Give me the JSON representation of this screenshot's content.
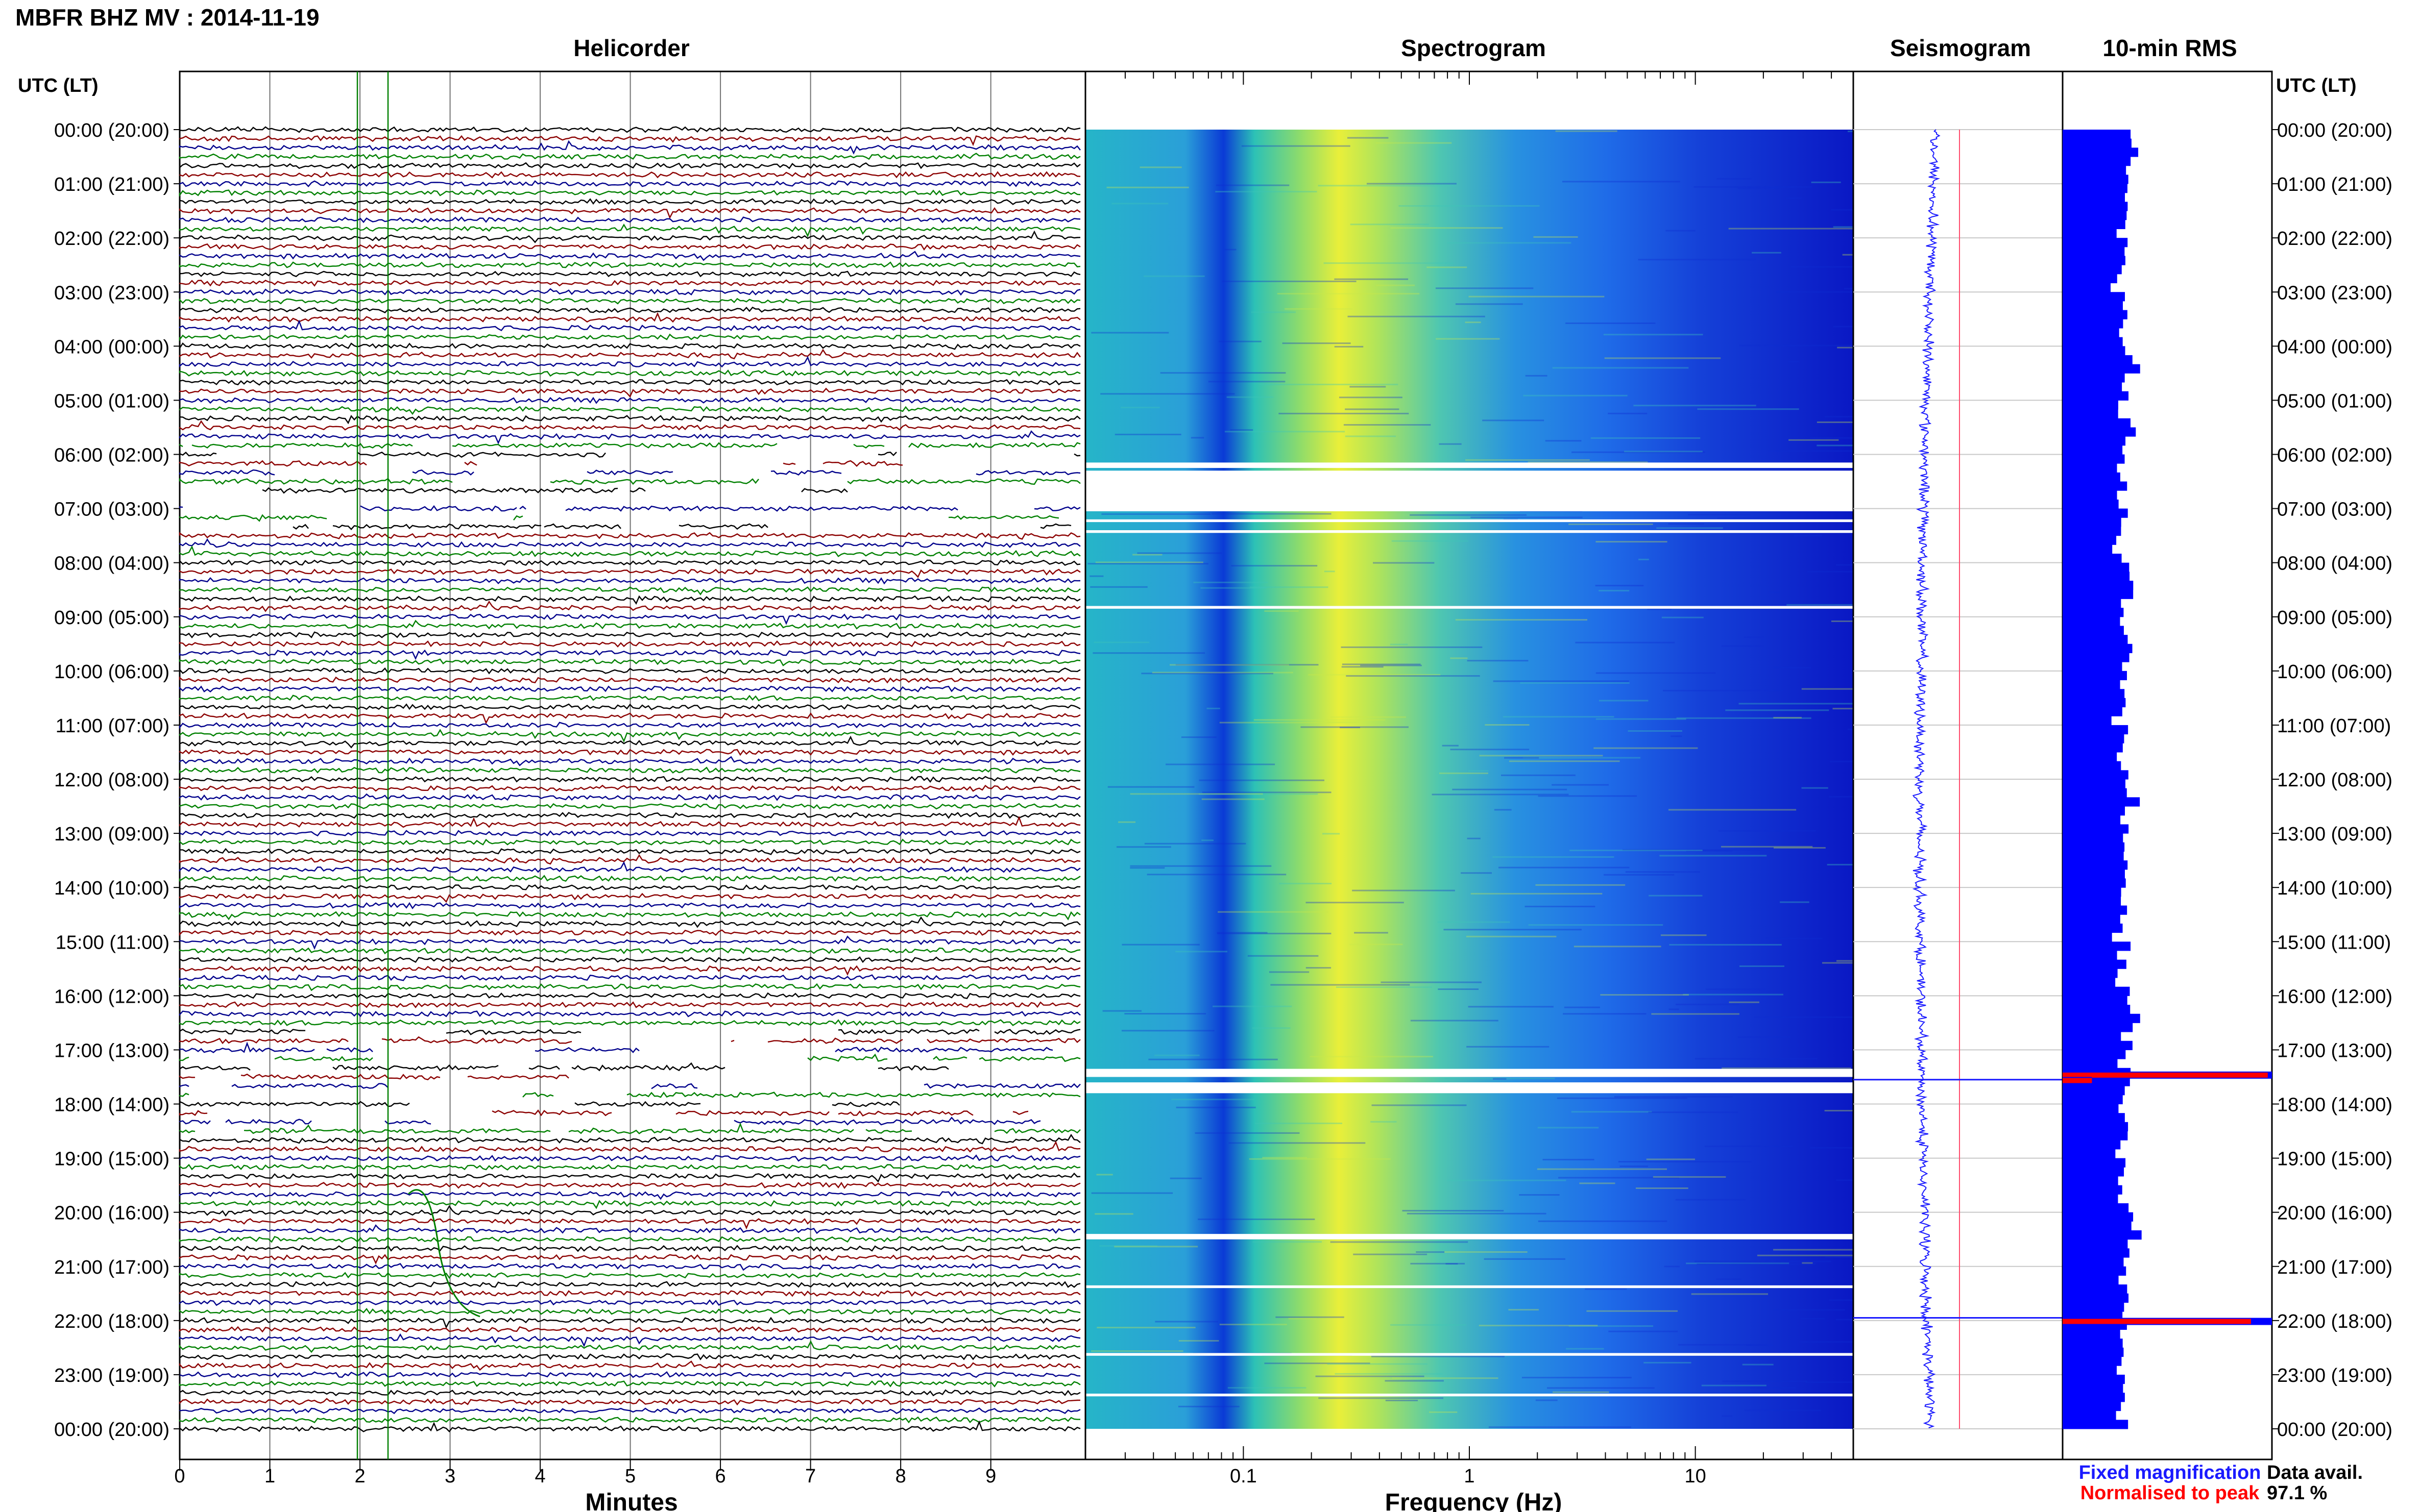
{
  "header": {
    "title": "MBFR BHZ MV : 2014-11-19"
  },
  "panels": {
    "helicorder_title": "Helicorder",
    "spectrogram_title": "Spectrogram",
    "seismogram_title": "Seismogram",
    "rms_title": "10-min RMS"
  },
  "time_axis": {
    "left_header": "UTC (LT)",
    "right_header": "UTC (LT)",
    "labels": [
      "00:00 (20:00)",
      "01:00 (21:00)",
      "02:00 (22:00)",
      "03:00 (23:00)",
      "04:00 (00:00)",
      "05:00 (01:00)",
      "06:00 (02:00)",
      "07:00 (03:00)",
      "08:00 (04:00)",
      "09:00 (05:00)",
      "10:00 (06:00)",
      "11:00 (07:00)",
      "12:00 (08:00)",
      "13:00 (09:00)",
      "14:00 (10:00)",
      "15:00 (11:00)",
      "16:00 (12:00)",
      "17:00 (13:00)",
      "18:00 (14:00)",
      "19:00 (15:00)",
      "20:00 (16:00)",
      "21:00 (17:00)",
      "22:00 (18:00)",
      "23:00 (19:00)",
      "00:00 (20:00)"
    ]
  },
  "legend": {
    "fixed": "Fixed magnification",
    "normalised": "Normalised to peak",
    "fixed_color": "#1a1aff",
    "normalised_color": "#ff0000",
    "avail_label": "Data avail.",
    "avail_value": "97.1 %"
  },
  "colors": {
    "trace_black": "#000000",
    "trace_red": "#8b0000",
    "trace_blue": "#00008b",
    "trace_green": "#008000",
    "rms_fill": "#0000ff",
    "rms_peak": "#ff0000"
  },
  "chart_data": [
    {
      "type": "line",
      "title": "Helicorder",
      "xlabel": "Minutes",
      "ylabel": "UTC (LT)",
      "xlim": [
        0,
        10
      ],
      "x_ticks": [
        0,
        1,
        2,
        3,
        4,
        5,
        6,
        7,
        8,
        9
      ],
      "rows_per_hour": 6,
      "trace_colors_cycle": [
        "black",
        "red",
        "blue",
        "green"
      ],
      "gap_hours_utc": [
        6.2,
        6.5,
        7.0,
        17.3,
        17.5,
        17.8
      ]
    },
    {
      "type": "heatmap",
      "title": "Spectrogram",
      "xlabel": "Frequency (Hz)",
      "x_scale": "log",
      "xlim": [
        0.02,
        50
      ],
      "x_tick_labels": [
        "0.1",
        "1",
        "10"
      ],
      "x_tick_values": [
        0.1,
        1,
        10
      ],
      "peak_band_hz": [
        0.15,
        0.35
      ],
      "gap_hours_utc": [
        6.2,
        6.3,
        6.4,
        17.3,
        17.6,
        17.8
      ]
    },
    {
      "type": "line",
      "title": "Seismogram",
      "event_hours_utc": [
        17.55,
        21.95
      ]
    },
    {
      "type": "bar",
      "title": "10-min RMS",
      "units": "relative",
      "values_fixed_sample": [
        0.32,
        0.33,
        0.36,
        0.32,
        0.3,
        0.31,
        0.29,
        0.28,
        0.3,
        0.33,
        0.3,
        0.28,
        0.29,
        0.28,
        0.3,
        0.29,
        0.27,
        0.25,
        0.3,
        0.28,
        0.29,
        0.27,
        0.26,
        0.3
      ],
      "peaks": [
        {
          "hour_utc": 17.4,
          "fixed": 1.0,
          "normalised": 0.98
        },
        {
          "hour_utc": 17.5,
          "fixed": 0.14,
          "normalised": 0.14
        },
        {
          "hour_utc": 21.95,
          "fixed": 1.0,
          "normalised": 0.9
        }
      ]
    }
  ]
}
